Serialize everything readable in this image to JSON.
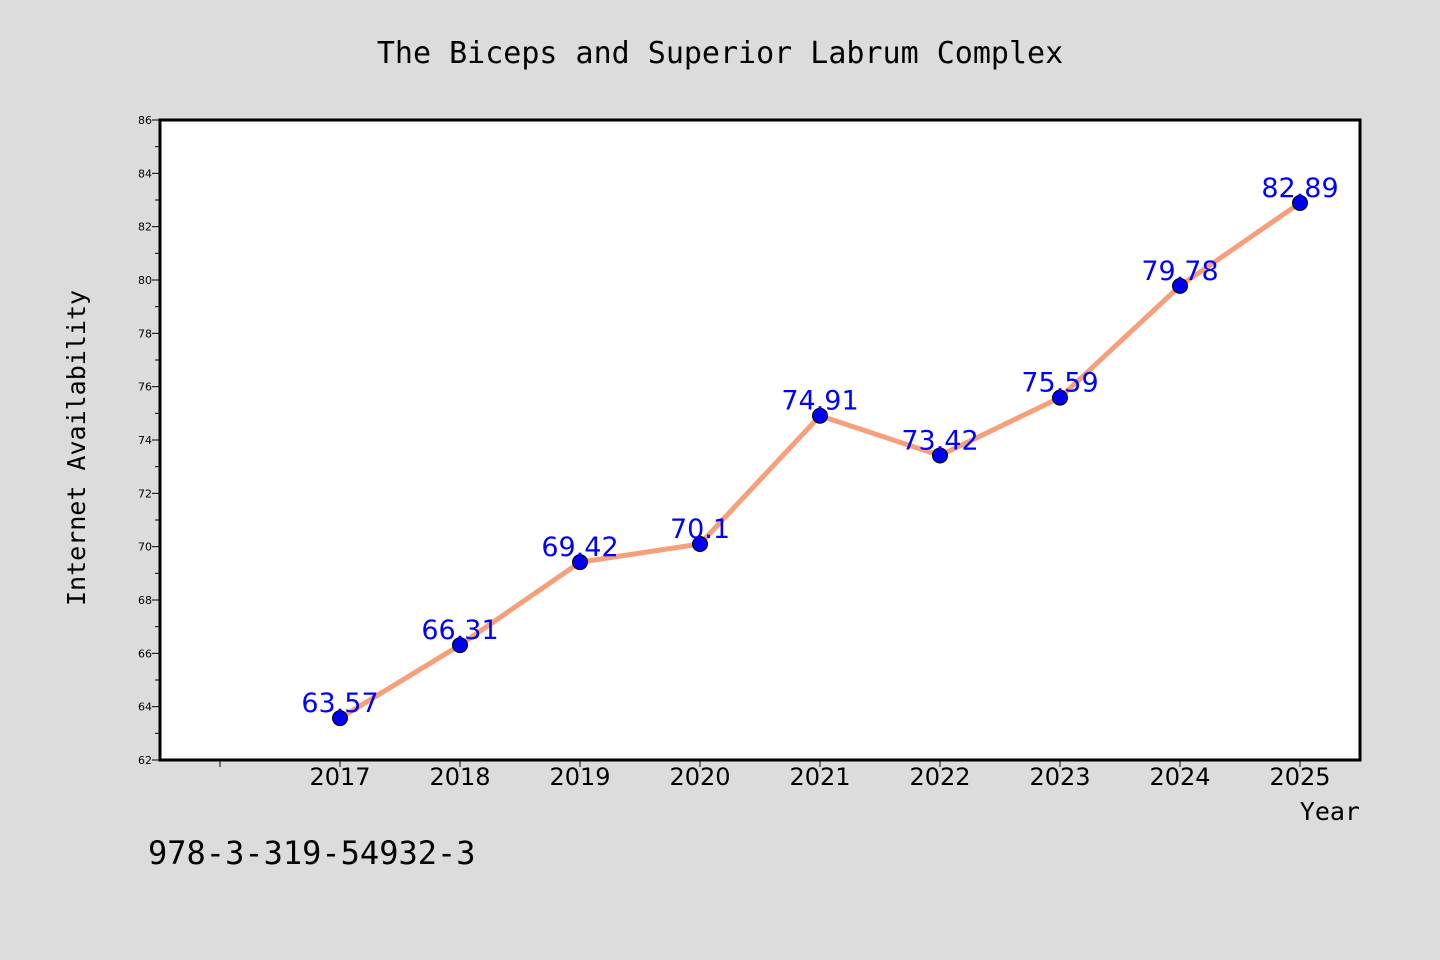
{
  "chart_data": {
    "type": "line",
    "title": "The Biceps and Superior Labrum Complex",
    "xlabel": "Year",
    "ylabel": "Internet Availability",
    "categories": [
      "2017",
      "2018",
      "2019",
      "2020",
      "2021",
      "2022",
      "2023",
      "2024",
      "2025"
    ],
    "series": [
      {
        "values": [
          63.57,
          66.31,
          69.42,
          70.1,
          74.91,
          73.42,
          75.59,
          79.78,
          82.89
        ],
        "line_color": "#f5a07a",
        "marker_color": "#0000ee",
        "label_color": "#0000ff"
      }
    ],
    "data_labels": [
      "63.57",
      "66.31",
      "69.42",
      "70.1",
      "74.91",
      "73.42",
      "75.59",
      "79.78",
      "82.89"
    ],
    "ylim": [
      62,
      86
    ],
    "yticks": [
      "62",
      "64",
      "66",
      "68",
      "70",
      "72",
      "74",
      "76",
      "78",
      "80",
      "82",
      "84",
      "86"
    ],
    "grid": false,
    "legend": "none"
  },
  "footer_code": "978-3-319-54932-3",
  "colors": {
    "background": "#dcdcdc",
    "plot_background": "#ffffff",
    "axis": "#000000"
  }
}
